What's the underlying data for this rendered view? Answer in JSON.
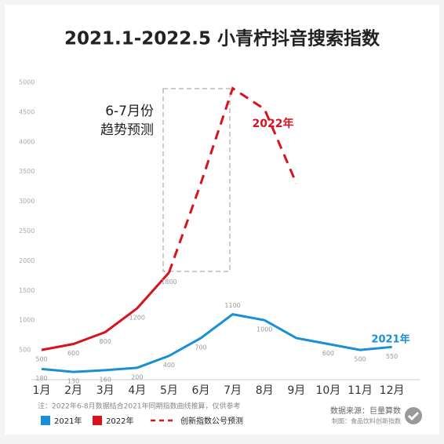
{
  "chart_data": {
    "type": "line",
    "title": "2021.1-2022.5 小青柠抖音搜索指数",
    "categories": [
      "1月",
      "2月",
      "3月",
      "4月",
      "5月",
      "6月",
      "7月",
      "8月",
      "9月",
      "10月",
      "11月",
      "12月"
    ],
    "ylim": [
      0,
      5000
    ],
    "yticks": [
      500,
      1000,
      1500,
      2000,
      2500,
      3000,
      3500,
      4000,
      4500,
      5000
    ],
    "series": [
      {
        "name": "2021年",
        "color": "#1a8fd6",
        "values": [
          180,
          130,
          160,
          200,
          400,
          700,
          1100,
          1000,
          700,
          600,
          500,
          550
        ],
        "value_labels": [
          "180",
          "130",
          "160",
          "200",
          "400",
          "700",
          "1100",
          "1000",
          null,
          "600",
          "500",
          "550"
        ]
      },
      {
        "name": "2022年",
        "color": "#d7141e",
        "values": [
          500,
          600,
          800,
          1200,
          1800,
          null,
          null,
          null,
          null,
          null,
          null,
          null
        ],
        "data_labels": true
      },
      {
        "name": "创新指数公号预测",
        "color": "#d7141e",
        "dashed": true,
        "values": [
          null,
          null,
          null,
          null,
          1800,
          3300,
          4900,
          4550,
          3300,
          null,
          null,
          null
        ]
      }
    ],
    "annotations": {
      "box_line1": "6-7月份",
      "box_line2": "趋势预测",
      "label_2022": "2022年",
      "label_2021": "2021年"
    },
    "note": "注：2022年6-8月数据结合2021年同期指数曲线推算，仅供参考",
    "source": "数据来源：巨量算数",
    "credit": "制图：食品饮料创新指数"
  }
}
